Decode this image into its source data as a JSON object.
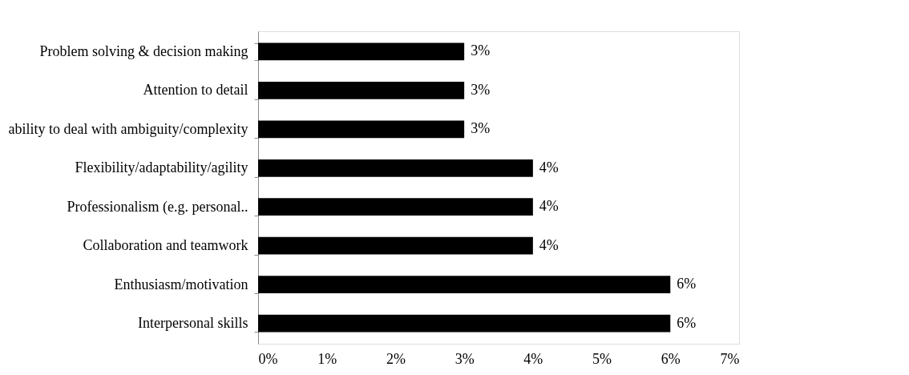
{
  "chart_data": {
    "type": "bar",
    "orientation": "horizontal",
    "categories": [
      "Problem solving & decision making",
      "Attention to detail",
      "ability to deal with ambiguity/complexity",
      "Flexibility/adaptability/agility",
      "Professionalism (e.g. personal..",
      "Collaboration and teamwork",
      "Enthusiasm/motivation",
      "Interpersonal skills"
    ],
    "values": [
      3,
      3,
      3,
      4,
      4,
      4,
      6,
      6
    ],
    "value_labels": [
      "3%",
      "3%",
      "3%",
      "4%",
      "4%",
      "4%",
      "6%",
      "6%"
    ],
    "color": "#000000",
    "xlim": [
      0,
      7
    ],
    "xticks": [
      {
        "value": 0,
        "label": "0%"
      },
      {
        "value": 1,
        "label": "1%"
      },
      {
        "value": 2,
        "label": "2%"
      },
      {
        "value": 3,
        "label": "3%"
      },
      {
        "value": 4,
        "label": "4%"
      },
      {
        "value": 5,
        "label": "5%"
      },
      {
        "value": 6,
        "label": "6%"
      },
      {
        "value": 7,
        "label": "7%"
      }
    ],
    "grid": false
  }
}
